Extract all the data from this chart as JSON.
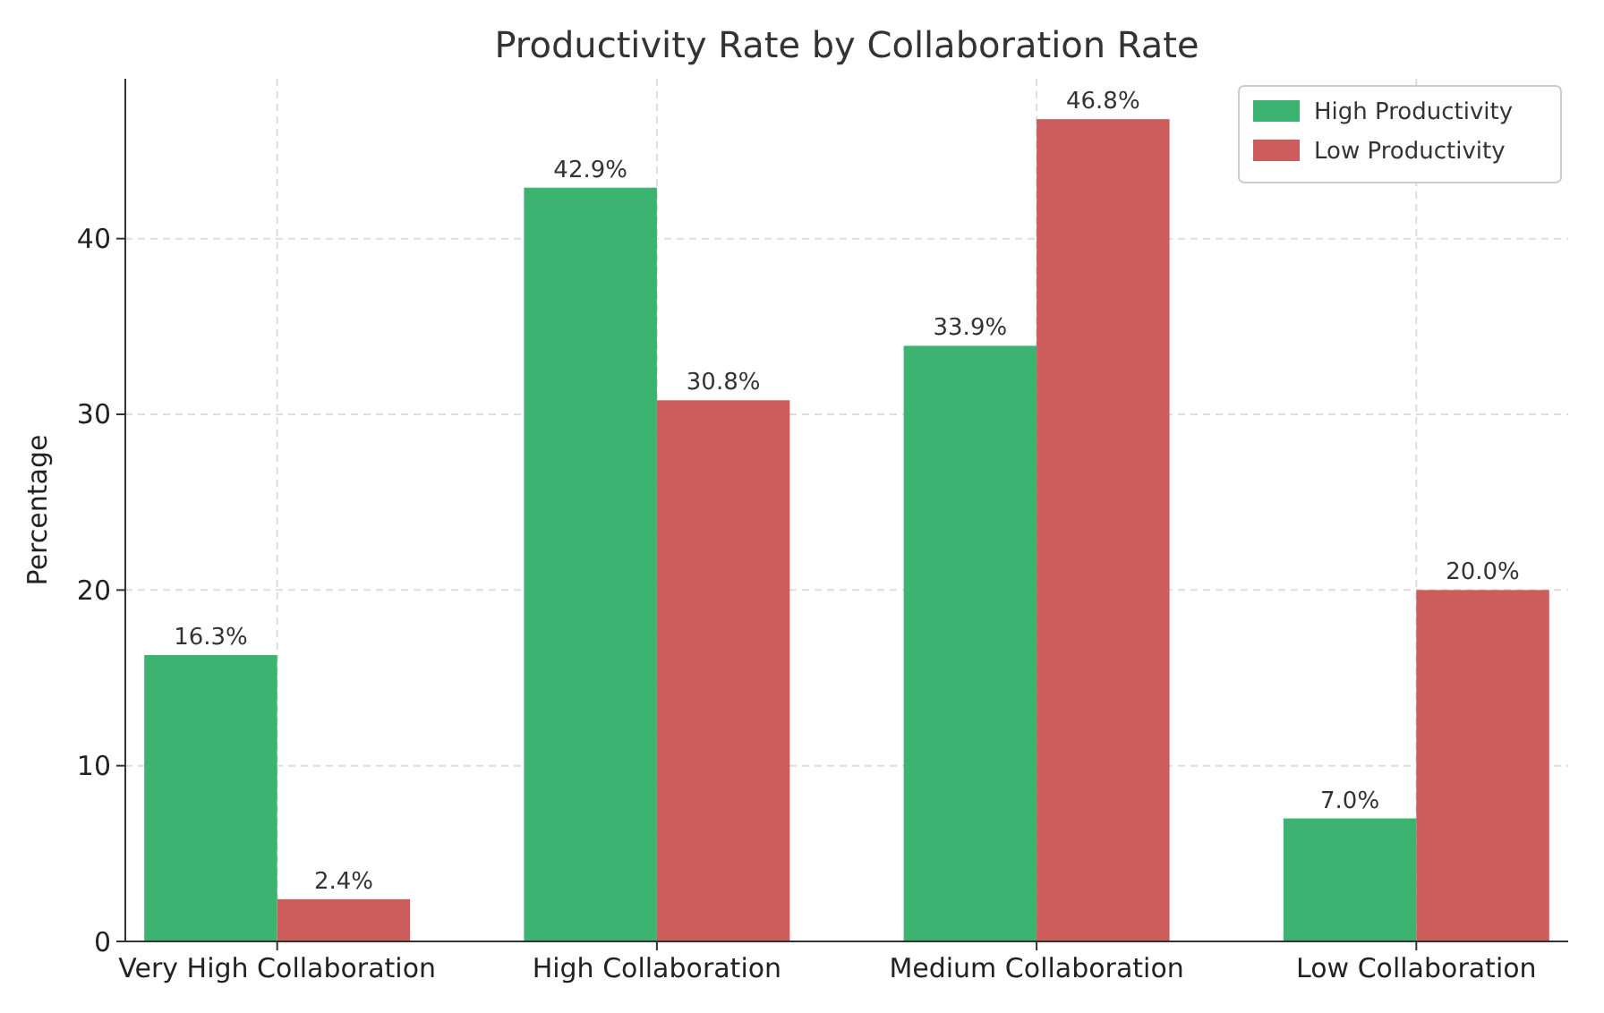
{
  "chart_data": {
    "type": "bar",
    "title": "Productivity Rate by Collaboration Rate",
    "ylabel": "Percentage",
    "categories": [
      "Very High Collaboration",
      "High Collaboration",
      "Medium Collaboration",
      "Low Collaboration"
    ],
    "series": [
      {
        "name": "High Productivity",
        "color": "#3cb371",
        "values": [
          16.3,
          42.9,
          33.9,
          7.0
        ],
        "value_labels": [
          "16.3%",
          "42.9%",
          "33.9%",
          "7.0%"
        ]
      },
      {
        "name": "Low Productivity",
        "color": "#cd5c5c",
        "values": [
          2.4,
          30.8,
          46.8,
          20.0
        ],
        "value_labels": [
          "2.4%",
          "30.8%",
          "46.8%",
          "20.0%"
        ]
      }
    ],
    "ylim": [
      0,
      49.1
    ],
    "yticks": [
      0,
      10,
      20,
      30,
      40
    ],
    "grid": true,
    "legend": "top right"
  }
}
